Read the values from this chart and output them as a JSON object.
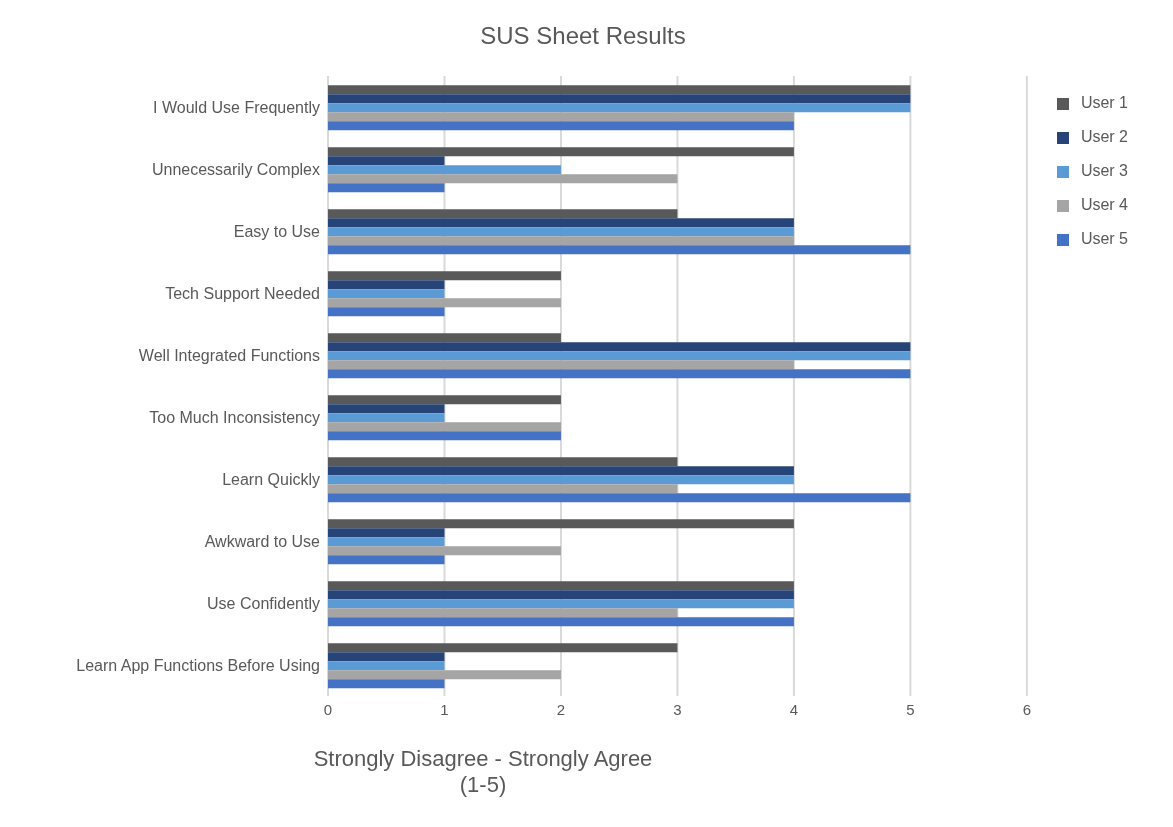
{
  "chart_data": {
    "type": "bar",
    "orientation": "horizontal",
    "title": "SUS Sheet Results",
    "xlabel": "Strongly Disagree - Strongly Agree\n(1-5)",
    "categories": [
      "I Would Use Frequently",
      "Unnecessarily Complex",
      "Easy to Use",
      "Tech Support Needed",
      "Well Integrated Functions",
      "Too Much Inconsistency",
      "Learn Quickly",
      "Awkward to Use",
      "Use Confidently",
      "Learn App Functions Before Using"
    ],
    "series": [
      {
        "name": "User 1",
        "color": "#595959",
        "values": [
          5,
          4,
          3,
          2,
          2,
          2,
          3,
          4,
          4,
          3
        ]
      },
      {
        "name": "User 2",
        "color": "#264478",
        "values": [
          5,
          1,
          4,
          1,
          5,
          1,
          4,
          1,
          4,
          1
        ]
      },
      {
        "name": "User 3",
        "color": "#5b9bd5",
        "values": [
          5,
          2,
          4,
          1,
          5,
          1,
          4,
          1,
          4,
          1
        ]
      },
      {
        "name": "User 4",
        "color": "#a5a5a5",
        "values": [
          4,
          3,
          4,
          2,
          4,
          2,
          3,
          2,
          3,
          2
        ]
      },
      {
        "name": "User 5",
        "color": "#4472c4",
        "values": [
          4,
          1,
          5,
          1,
          5,
          2,
          5,
          1,
          4,
          1
        ]
      }
    ],
    "xlim": [
      0,
      6
    ],
    "xticks": [
      0,
      1,
      2,
      3,
      4,
      5,
      6
    ],
    "grid": "x",
    "legend": "top right"
  }
}
